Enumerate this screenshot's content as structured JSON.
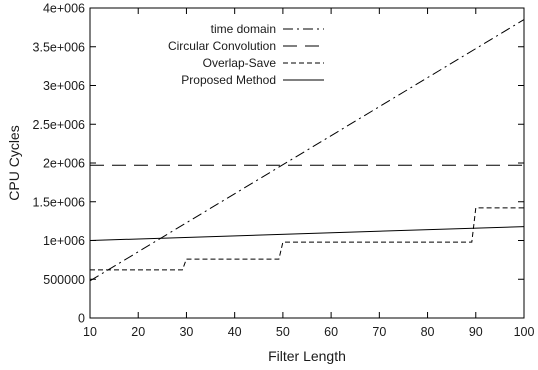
{
  "chart_data": {
    "type": "line",
    "title": "",
    "xlabel": "Filter Length",
    "ylabel": "CPU Cycles",
    "xlim": [
      10,
      100
    ],
    "ylim": [
      0,
      4000000
    ],
    "xticks": [
      10,
      20,
      30,
      40,
      50,
      60,
      70,
      80,
      90,
      100
    ],
    "xtick_labels": [
      "10",
      "20",
      "30",
      "40",
      "50",
      "60",
      "70",
      "80",
      "90",
      "100"
    ],
    "yticks": [
      0,
      500000,
      1000000,
      1500000,
      2000000,
      2500000,
      3000000,
      3500000,
      4000000
    ],
    "ytick_labels": [
      "0",
      "500000",
      "1e+006",
      "1.5e+006",
      "2e+006",
      "2.5e+006",
      "3e+006",
      "3.5e+006",
      "4e+006"
    ],
    "grid": false,
    "legend_position": "top-left",
    "series": [
      {
        "name": "time domain",
        "style": "dash-dot",
        "color": "#000000",
        "x": [
          10,
          100
        ],
        "y": [
          480000,
          3850000
        ]
      },
      {
        "name": "Circular Convolution",
        "style": "long-dash",
        "color": "#000000",
        "x": [
          10,
          100
        ],
        "y": [
          1970000,
          1970000
        ]
      },
      {
        "name": "Overlap-Save",
        "style": "short-dash",
        "color": "#000000",
        "x": [
          10,
          20,
          30,
          40,
          50,
          60,
          70,
          80,
          90,
          100
        ],
        "y": [
          620000,
          620000,
          760000,
          760000,
          980000,
          980000,
          980000,
          980000,
          1420000,
          1420000
        ],
        "step": true
      },
      {
        "name": "Proposed Method",
        "style": "solid",
        "color": "#000000",
        "x": [
          10,
          100
        ],
        "y": [
          1000000,
          1180000
        ]
      }
    ]
  }
}
